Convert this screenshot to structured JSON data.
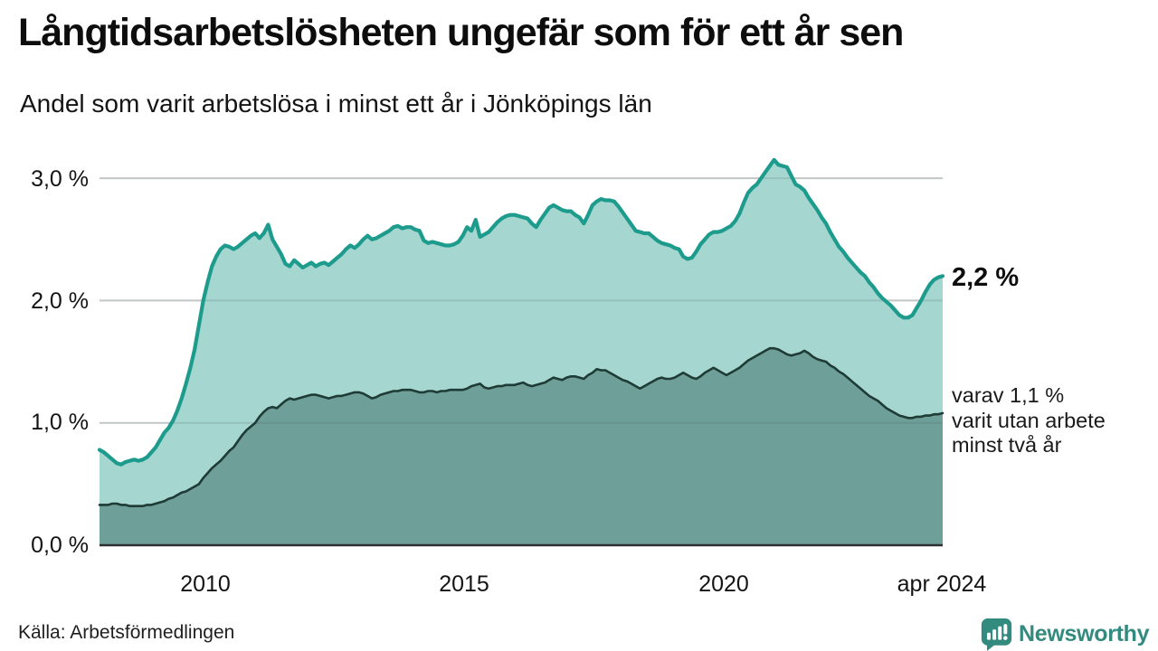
{
  "header": {
    "title": "Långtidsarbetslösheten ungefär som för ett år sen",
    "subtitle": "Andel som varit arbetslösa i minst ett år i Jönköpings län"
  },
  "annotations": {
    "latest_total": "2,2 %",
    "secondary_lines": [
      "varav 1,1 %",
      "varit utan arbete",
      "minst två år"
    ]
  },
  "footer": {
    "source": "Källa: Arbetsförmedlingen",
    "brand": "Newsworthy"
  },
  "colors": {
    "line_primary": "#1d9c8d",
    "fill_primary": "#a5d6cf",
    "line_secondary": "#1f3b36",
    "fill_secondary": "#6f9f99",
    "gridline": "#dcdcdc",
    "gridline_overlay": "rgba(70,85,85,0.16)",
    "baseline": "#2b2f2e",
    "brand_teal": "#338a7e"
  },
  "chart_data": {
    "type": "area",
    "title": "Långtidsarbetslösheten ungefär som för ett år sen",
    "subtitle": "Andel som varit arbetslösa i minst ett år i Jönköpings län",
    "unit": "%",
    "frequency": "monthly",
    "x_start": "2008-01",
    "x_end": "2024-04",
    "ylim": [
      0,
      3.3
    ],
    "grid": true,
    "y_ticks": [
      {
        "value": 3.0,
        "label": "3,0 %"
      },
      {
        "value": 2.0,
        "label": "2,0 %"
      },
      {
        "value": 1.0,
        "label": "1,0 %"
      },
      {
        "value": 0.0,
        "label": "0,0 %"
      }
    ],
    "x_ticks": [
      {
        "month_index": 24,
        "label": "2010"
      },
      {
        "month_index": 84,
        "label": "2015"
      },
      {
        "month_index": 144,
        "label": "2020"
      },
      {
        "month_index": 195,
        "label": "apr 2024"
      }
    ],
    "series": [
      {
        "name": "Arbetslösa minst ett år",
        "latest_label": "2,2 %",
        "values": [
          0.78,
          0.76,
          0.73,
          0.7,
          0.67,
          0.66,
          0.68,
          0.69,
          0.7,
          0.69,
          0.7,
          0.72,
          0.76,
          0.8,
          0.86,
          0.92,
          0.96,
          1.02,
          1.1,
          1.2,
          1.32,
          1.45,
          1.6,
          1.8,
          2.0,
          2.15,
          2.28,
          2.36,
          2.42,
          2.45,
          2.44,
          2.42,
          2.44,
          2.47,
          2.5,
          2.53,
          2.55,
          2.51,
          2.55,
          2.62,
          2.5,
          2.44,
          2.38,
          2.3,
          2.28,
          2.33,
          2.3,
          2.27,
          2.29,
          2.31,
          2.28,
          2.3,
          2.31,
          2.29,
          2.32,
          2.35,
          2.38,
          2.42,
          2.45,
          2.43,
          2.46,
          2.5,
          2.53,
          2.5,
          2.51,
          2.53,
          2.55,
          2.57,
          2.6,
          2.61,
          2.59,
          2.6,
          2.6,
          2.58,
          2.57,
          2.49,
          2.47,
          2.48,
          2.47,
          2.46,
          2.45,
          2.45,
          2.46,
          2.48,
          2.53,
          2.6,
          2.57,
          2.66,
          2.52,
          2.54,
          2.56,
          2.6,
          2.64,
          2.67,
          2.69,
          2.7,
          2.7,
          2.69,
          2.68,
          2.67,
          2.63,
          2.6,
          2.66,
          2.71,
          2.76,
          2.78,
          2.76,
          2.74,
          2.73,
          2.73,
          2.7,
          2.68,
          2.63,
          2.7,
          2.78,
          2.81,
          2.83,
          2.82,
          2.82,
          2.81,
          2.77,
          2.72,
          2.67,
          2.62,
          2.57,
          2.56,
          2.55,
          2.55,
          2.52,
          2.49,
          2.47,
          2.46,
          2.45,
          2.43,
          2.42,
          2.36,
          2.34,
          2.35,
          2.4,
          2.46,
          2.5,
          2.54,
          2.56,
          2.56,
          2.57,
          2.59,
          2.61,
          2.65,
          2.71,
          2.8,
          2.88,
          2.92,
          2.95,
          3.0,
          3.05,
          3.1,
          3.15,
          3.11,
          3.1,
          3.09,
          3.02,
          2.95,
          2.93,
          2.9,
          2.84,
          2.79,
          2.74,
          2.68,
          2.63,
          2.56,
          2.5,
          2.44,
          2.4,
          2.35,
          2.31,
          2.27,
          2.23,
          2.2,
          2.15,
          2.11,
          2.06,
          2.02,
          1.99,
          1.96,
          1.92,
          1.88,
          1.86,
          1.86,
          1.88,
          1.94,
          2.0,
          2.07,
          2.13,
          2.17,
          2.19,
          2.2
        ]
      },
      {
        "name": "varav arbetslösa minst två år",
        "latest_label": "varav 1,1 %",
        "values": [
          0.33,
          0.33,
          0.33,
          0.34,
          0.34,
          0.33,
          0.33,
          0.32,
          0.32,
          0.32,
          0.32,
          0.33,
          0.33,
          0.34,
          0.35,
          0.36,
          0.38,
          0.39,
          0.41,
          0.43,
          0.44,
          0.46,
          0.48,
          0.5,
          0.55,
          0.59,
          0.63,
          0.66,
          0.69,
          0.73,
          0.77,
          0.8,
          0.85,
          0.9,
          0.94,
          0.97,
          1.0,
          1.05,
          1.09,
          1.12,
          1.13,
          1.12,
          1.15,
          1.18,
          1.2,
          1.19,
          1.2,
          1.21,
          1.22,
          1.23,
          1.23,
          1.22,
          1.21,
          1.2,
          1.21,
          1.22,
          1.22,
          1.23,
          1.24,
          1.25,
          1.25,
          1.24,
          1.22,
          1.2,
          1.21,
          1.23,
          1.24,
          1.25,
          1.26,
          1.26,
          1.27,
          1.27,
          1.27,
          1.26,
          1.25,
          1.25,
          1.26,
          1.26,
          1.25,
          1.26,
          1.26,
          1.27,
          1.27,
          1.27,
          1.27,
          1.28,
          1.3,
          1.31,
          1.32,
          1.29,
          1.28,
          1.29,
          1.3,
          1.3,
          1.31,
          1.31,
          1.31,
          1.32,
          1.33,
          1.31,
          1.3,
          1.31,
          1.32,
          1.33,
          1.35,
          1.37,
          1.36,
          1.35,
          1.37,
          1.38,
          1.38,
          1.37,
          1.36,
          1.39,
          1.41,
          1.44,
          1.43,
          1.43,
          1.41,
          1.39,
          1.37,
          1.35,
          1.34,
          1.32,
          1.3,
          1.28,
          1.3,
          1.32,
          1.34,
          1.36,
          1.37,
          1.36,
          1.36,
          1.37,
          1.39,
          1.41,
          1.39,
          1.37,
          1.36,
          1.38,
          1.41,
          1.43,
          1.45,
          1.43,
          1.41,
          1.39,
          1.41,
          1.43,
          1.45,
          1.48,
          1.51,
          1.53,
          1.55,
          1.57,
          1.59,
          1.61,
          1.61,
          1.6,
          1.58,
          1.56,
          1.55,
          1.56,
          1.57,
          1.59,
          1.57,
          1.54,
          1.52,
          1.51,
          1.5,
          1.47,
          1.45,
          1.42,
          1.4,
          1.37,
          1.34,
          1.31,
          1.28,
          1.25,
          1.22,
          1.2,
          1.18,
          1.15,
          1.12,
          1.1,
          1.08,
          1.06,
          1.05,
          1.04,
          1.04,
          1.05,
          1.05,
          1.06,
          1.06,
          1.07,
          1.07,
          1.08
        ]
      }
    ]
  }
}
